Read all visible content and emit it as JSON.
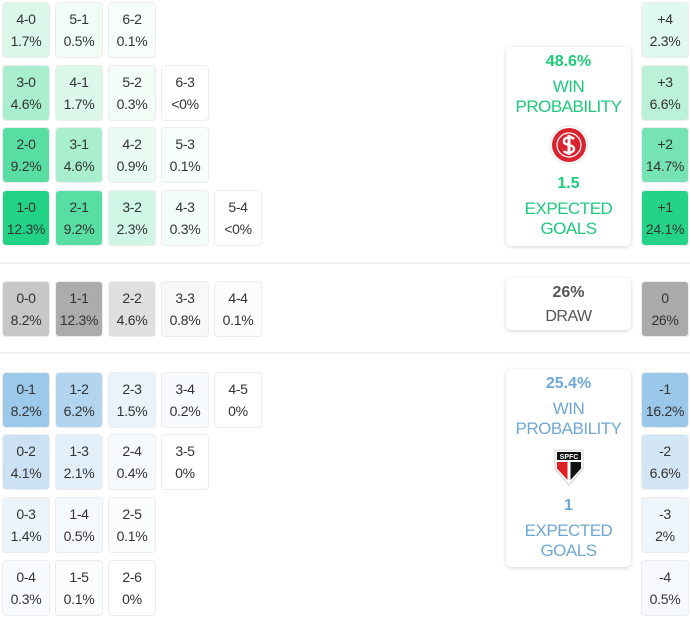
{
  "chart_data": {
    "type": "heatmap",
    "title": "Score probabilities",
    "home": {
      "win_probability": "48.6%",
      "win_label": "WIN PROBABILITY",
      "expected_goals": "1.5",
      "xg_label": "EXPECTED GOALS",
      "color": "#1ec97a",
      "logo": "internacional-crest-icon",
      "scores": [
        [
          {
            "s": "4-0",
            "p": "1.7%"
          },
          {
            "s": "5-1",
            "p": "0.5%"
          },
          {
            "s": "6-2",
            "p": "0.1%"
          }
        ],
        [
          {
            "s": "3-0",
            "p": "4.6%"
          },
          {
            "s": "4-1",
            "p": "1.7%"
          },
          {
            "s": "5-2",
            "p": "0.3%"
          },
          {
            "s": "6-3",
            "p": "<0%"
          }
        ],
        [
          {
            "s": "2-0",
            "p": "9.2%"
          },
          {
            "s": "3-1",
            "p": "4.6%"
          },
          {
            "s": "4-2",
            "p": "0.9%"
          },
          {
            "s": "5-3",
            "p": "0.1%"
          }
        ],
        [
          {
            "s": "1-0",
            "p": "12.3%"
          },
          {
            "s": "2-1",
            "p": "9.2%"
          },
          {
            "s": "3-2",
            "p": "2.3%"
          },
          {
            "s": "4-3",
            "p": "0.3%"
          },
          {
            "s": "5-4",
            "p": "<0%"
          }
        ]
      ],
      "margins": [
        {
          "m": "+4",
          "p": "2.3%"
        },
        {
          "m": "+3",
          "p": "6.6%"
        },
        {
          "m": "+2",
          "p": "14.7%"
        },
        {
          "m": "+1",
          "p": "24.1%"
        }
      ]
    },
    "draw": {
      "probability": "26%",
      "label": "DRAW",
      "scores": [
        {
          "s": "0-0",
          "p": "8.2%"
        },
        {
          "s": "1-1",
          "p": "12.3%"
        },
        {
          "s": "2-2",
          "p": "4.6%"
        },
        {
          "s": "3-3",
          "p": "0.8%"
        },
        {
          "s": "4-4",
          "p": "0.1%"
        }
      ],
      "margin": {
        "m": "0",
        "p": "26%"
      }
    },
    "away": {
      "win_probability": "25.4%",
      "win_label": "WIN PROBABILITY",
      "expected_goals": "1",
      "xg_label": "EXPECTED GOALS",
      "color": "#6fa8d6",
      "logo": "spfc-crest-icon",
      "scores": [
        [
          {
            "s": "0-1",
            "p": "8.2%"
          },
          {
            "s": "1-2",
            "p": "6.2%"
          },
          {
            "s": "2-3",
            "p": "1.5%"
          },
          {
            "s": "3-4",
            "p": "0.2%"
          },
          {
            "s": "4-5",
            "p": "0%"
          }
        ],
        [
          {
            "s": "0-2",
            "p": "4.1%"
          },
          {
            "s": "1-3",
            "p": "2.1%"
          },
          {
            "s": "2-4",
            "p": "0.4%"
          },
          {
            "s": "3-5",
            "p": "0%"
          }
        ],
        [
          {
            "s": "0-3",
            "p": "1.4%"
          },
          {
            "s": "1-4",
            "p": "0.5%"
          },
          {
            "s": "2-5",
            "p": "0.1%"
          }
        ],
        [
          {
            "s": "0-4",
            "p": "0.3%"
          },
          {
            "s": "1-5",
            "p": "0.1%"
          },
          {
            "s": "2-6",
            "p": "0%"
          }
        ]
      ],
      "margins": [
        {
          "m": "-1",
          "p": "16.2%"
        },
        {
          "m": "-2",
          "p": "6.6%"
        },
        {
          "m": "-3",
          "p": "2%"
        },
        {
          "m": "-4",
          "p": "0.5%"
        }
      ]
    }
  },
  "labels": {
    "home_win_1": "WIN",
    "home_win_2": "PROBABILITY",
    "home_xg_1": "EXPECTED",
    "home_xg_2": "GOALS",
    "away_win_1": "WIN",
    "away_win_2": "PROBABILITY",
    "away_xg_1": "EXPECTED",
    "away_xg_2": "GOALS",
    "spfc_text": "SPFC"
  }
}
